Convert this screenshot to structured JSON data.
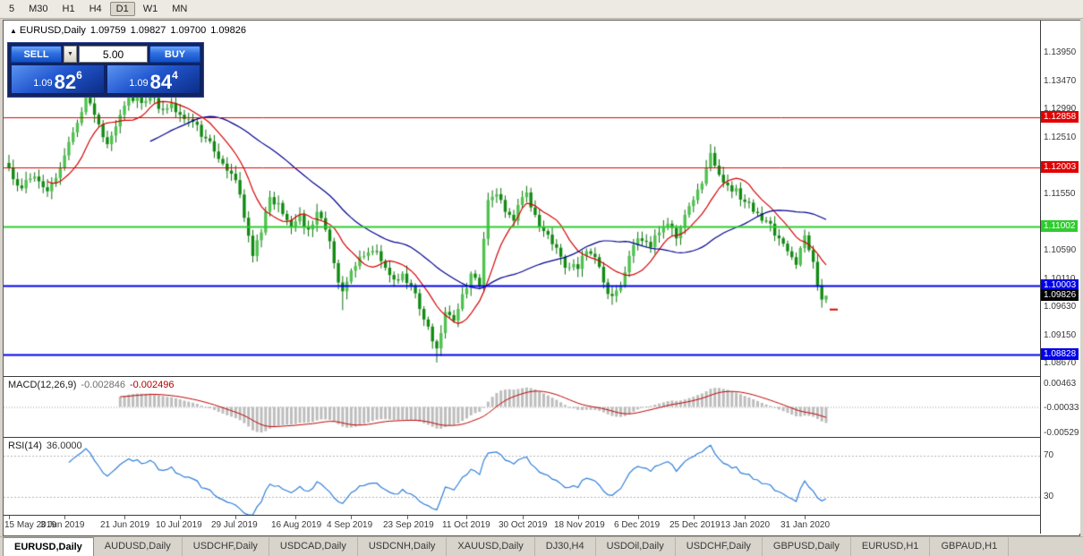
{
  "toolbar": {
    "timeframes": [
      {
        "label": "5",
        "active": false
      },
      {
        "label": "M30",
        "active": false
      },
      {
        "label": "H1",
        "active": false
      },
      {
        "label": "H4",
        "active": false
      },
      {
        "label": "D1",
        "active": true
      },
      {
        "label": "W1",
        "active": false
      },
      {
        "label": "MN",
        "active": false
      }
    ]
  },
  "chart": {
    "title": {
      "marker": "▲",
      "symbol": "EURUSD,Daily",
      "open": "1.09759",
      "high": "1.09827",
      "low": "1.09700",
      "close": "1.09826"
    },
    "one_click": {
      "sell_label": "SELL",
      "buy_label": "BUY",
      "lot": "5.00",
      "sell_price": {
        "prefix": "1.09",
        "big": "82",
        "sup": "6"
      },
      "buy_price": {
        "prefix": "1.09",
        "big": "84",
        "sup": "4"
      }
    },
    "indicators": {
      "macd": {
        "name": "MACD(12,26,9)",
        "value1": "-0.002846",
        "value2": "-0.002496",
        "scale": [
          {
            "label": "0.00463",
            "value": 0.00463
          },
          {
            "label": "-0.00033",
            "value": -0.00033
          },
          {
            "label": "-0.00529",
            "value": -0.00529
          }
        ]
      },
      "rsi": {
        "name": "RSI(14)",
        "value": "36.0000",
        "levels": [
          {
            "label": "70",
            "value": 70
          },
          {
            "label": "30",
            "value": 30
          }
        ]
      }
    }
  },
  "chart_data": {
    "type": "candlestick",
    "symbol": "EURUSD",
    "period": "Daily",
    "count": 192,
    "ohlc_current": {
      "open": 1.09759,
      "high": 1.09827,
      "low": 1.097,
      "close": 1.09826
    },
    "anchors": [
      [
        0,
        1.12
      ],
      [
        3,
        1.1165
      ],
      [
        6,
        1.1185
      ],
      [
        9,
        1.116
      ],
      [
        12,
        1.12
      ],
      [
        15,
        1.126
      ],
      [
        18,
        1.132
      ],
      [
        20,
        1.129
      ],
      [
        23,
        1.124
      ],
      [
        26,
        1.129
      ],
      [
        28,
        1.132
      ],
      [
        31,
        1.131
      ],
      [
        33,
        1.1325
      ],
      [
        35,
        1.13
      ],
      [
        38,
        1.131
      ],
      [
        40,
        1.129
      ],
      [
        43,
        1.1278
      ],
      [
        46,
        1.125
      ],
      [
        49,
        1.1215
      ],
      [
        51,
        1.1195
      ],
      [
        53,
        1.1179
      ],
      [
        55,
        1.1115
      ],
      [
        57,
        1.105
      ],
      [
        59,
        1.109
      ],
      [
        61,
        1.115
      ],
      [
        63,
        1.114
      ],
      [
        66,
        1.11
      ],
      [
        68,
        1.112
      ],
      [
        70,
        1.1095
      ],
      [
        72,
        1.1125
      ],
      [
        74,
        1.1095
      ],
      [
        75,
        1.1075
      ],
      [
        77,
        1.1005
      ],
      [
        78,
        1.099
      ],
      [
        80,
        1.1025
      ],
      [
        83,
        1.105
      ],
      [
        86,
        1.1058
      ],
      [
        88,
        1.103
      ],
      [
        90,
        1.101
      ],
      [
        92,
        1.102
      ],
      [
        94,
        1.1
      ],
      [
        96,
        1.096
      ],
      [
        98,
        1.093
      ],
      [
        99,
        1.0905
      ],
      [
        100,
        1.0893
      ],
      [
        102,
        1.0955
      ],
      [
        104,
        1.094
      ],
      [
        106,
        1.0985
      ],
      [
        108,
        1.102
      ],
      [
        110,
        1.1
      ],
      [
        112,
        1.1145
      ],
      [
        114,
        1.1155
      ],
      [
        116,
        1.1125
      ],
      [
        118,
        1.111
      ],
      [
        120,
        1.115
      ],
      [
        121,
        1.1158
      ],
      [
        124,
        1.11
      ],
      [
        127,
        1.107
      ],
      [
        130,
        1.103
      ],
      [
        133,
        1.1028
      ],
      [
        135,
        1.1058
      ],
      [
        137,
        1.1048
      ],
      [
        139,
        1.1005
      ],
      [
        141,
        1.0982
      ],
      [
        143,
        1.1
      ],
      [
        145,
        1.105
      ],
      [
        147,
        1.108
      ],
      [
        150,
        1.1065
      ],
      [
        152,
        1.109
      ],
      [
        154,
        1.1105
      ],
      [
        156,
        1.108
      ],
      [
        158,
        1.112
      ],
      [
        160,
        1.1145
      ],
      [
        162,
        1.1173
      ],
      [
        164,
        1.1225
      ],
      [
        166,
        1.1188
      ],
      [
        168,
        1.117
      ],
      [
        170,
        1.1165
      ],
      [
        172,
        1.1142
      ],
      [
        174,
        1.1125
      ],
      [
        176,
        1.111
      ],
      [
        178,
        1.1105
      ],
      [
        180,
        1.108
      ],
      [
        182,
        1.1058
      ],
      [
        184,
        1.1035
      ],
      [
        186,
        1.1085
      ],
      [
        187,
        1.106
      ],
      [
        188,
        1.104
      ],
      [
        189,
        1.1
      ],
      [
        190,
        1.0976
      ],
      [
        191,
        1.09826
      ]
    ],
    "overrides": {
      "18": {
        "h": 1.133
      },
      "33": {
        "h": 1.1332
      },
      "57": {
        "l": 1.1039
      },
      "78": {
        "l": 1.0958
      },
      "100": {
        "l": 1.0869
      },
      "141": {
        "l": 1.0967
      },
      "164": {
        "h": 1.124
      },
      "186": {
        "h": 1.1095
      },
      "191": {
        "o": 1.09759,
        "h": 1.09827,
        "l": 1.097,
        "c": 1.09826
      }
    },
    "y_axis": {
      "labels": [
        "1.13950",
        "1.13470",
        "1.12990",
        "1.12510",
        "1.11550",
        "1.10590",
        "1.10110",
        "1.09630",
        "1.09150",
        "1.08670"
      ]
    },
    "levels": [
      {
        "price": 1.12858,
        "label": "1.12858",
        "color": "#e00000",
        "width": 1
      },
      {
        "price": 1.12003,
        "label": "1.12003",
        "color": "#e00000",
        "width": 1
      },
      {
        "price": 1.11002,
        "label": "1.11002",
        "color": "#2fcc2f",
        "width": 2
      },
      {
        "price": 1.10003,
        "label": "1.10003",
        "color": "#0000e8",
        "width": 2
      },
      {
        "price": 1.08828,
        "label": "1.08828",
        "color": "#0000e8",
        "width": 2
      }
    ],
    "current_price": {
      "value": 1.09826,
      "label": "1.09826",
      "bg": "#000000"
    },
    "trade_marker": {
      "price": 1.0959,
      "color": "#e00000"
    },
    "moving_averages": [
      {
        "period": 10,
        "color": "#d40000"
      },
      {
        "period": 34,
        "color": "#000090"
      }
    ],
    "x_axis": [
      {
        "label": "15 May 2019",
        "i": 0
      },
      {
        "label": "3 Jun 2019",
        "i": 13
      },
      {
        "label": "21 Jun 2019",
        "i": 27
      },
      {
        "label": "10 Jul 2019",
        "i": 40
      },
      {
        "label": "29 Jul 2019",
        "i": 53
      },
      {
        "label": "16 Aug 2019",
        "i": 67
      },
      {
        "label": "4 Sep 2019",
        "i": 80
      },
      {
        "label": "23 Sep 2019",
        "i": 93
      },
      {
        "label": "11 Oct 2019",
        "i": 107
      },
      {
        "label": "30 Oct 2019",
        "i": 120
      },
      {
        "label": "18 Nov 2019",
        "i": 133
      },
      {
        "label": "6 Dec 2019",
        "i": 147
      },
      {
        "label": "25 Dec 2019",
        "i": 160
      },
      {
        "label": "13 Jan 2020",
        "i": 172
      },
      {
        "label": "31 Jan 2020",
        "i": 186
      }
    ]
  },
  "tabs": [
    {
      "label": "EURUSD,Daily",
      "active": true
    },
    {
      "label": "AUDUSD,Daily",
      "active": false
    },
    {
      "label": "USDCHF,Daily",
      "active": false
    },
    {
      "label": "USDCAD,Daily",
      "active": false
    },
    {
      "label": "USDCNH,Daily",
      "active": false
    },
    {
      "label": "XAUUSD,Daily",
      "active": false
    },
    {
      "label": "DJ30,H4",
      "active": false
    },
    {
      "label": "USDOil,Daily",
      "active": false
    },
    {
      "label": "USDCHF,Daily",
      "active": false
    },
    {
      "label": "GBPUSD,Daily",
      "active": false
    },
    {
      "label": "EURUSD,H1",
      "active": false
    },
    {
      "label": "GBPAUD,H1",
      "active": false
    }
  ]
}
